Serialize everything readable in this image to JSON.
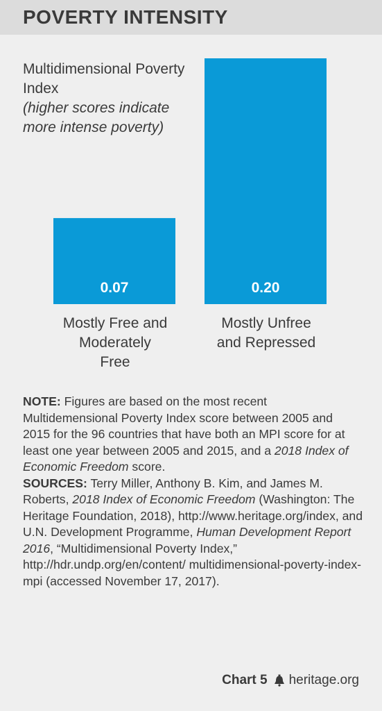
{
  "header": {
    "title": "POVERTY INTENSITY"
  },
  "chart_data": {
    "type": "bar",
    "title": "POVERTY INTENSITY",
    "ylabel": "Multidimensional Poverty Index",
    "ylabel_note": "(higher scores indicate more intense poverty)",
    "categories": [
      "Mostly Free and Moderately Free",
      "Mostly Unfree and Repressed"
    ],
    "category_lines": [
      [
        "Mostly Free and",
        "Moderately",
        "Free"
      ],
      [
        "Mostly Unfree",
        "and Repressed"
      ]
    ],
    "values": [
      0.07,
      0.2
    ],
    "value_labels": [
      "0.07",
      "0.20"
    ],
    "ylim": [
      0,
      0.2
    ],
    "grid": false,
    "bar_color": "#0a9ad7",
    "value_label_color": "#ffffff"
  },
  "note": {
    "note_label": "NOTE:",
    "note_text_1": " Figures are based on the most recent Multidemensional Poverty Index score between 2005 and 2015 for the 96 countries that have both an MPI score for at least one year between 2005 and 2015, and a ",
    "note_italic": "2018 Index of Economic Freedom",
    "note_text_2": " score.",
    "sources_label": "SOURCES:",
    "sources_text_1": " Terry Miller, Anthony B. Kim, and James M. Roberts, ",
    "sources_italic_1": "2018 Index of Economic Freedom",
    "sources_text_2": " (Washington: The Heritage Foundation, 2018), http://www.heritage.org/index, and U.N. Development Programme, ",
    "sources_italic_2": "Human Development Report 2016",
    "sources_text_3": ", “Multidimensional Poverty Index,” http://hdr.undp.org/en/content/ multidimensional-poverty-index-mpi (accessed November 17, 2017)."
  },
  "footer": {
    "chart_number": "Chart 5",
    "site": "heritage.org",
    "logo_icon": "liberty-bell-icon"
  }
}
